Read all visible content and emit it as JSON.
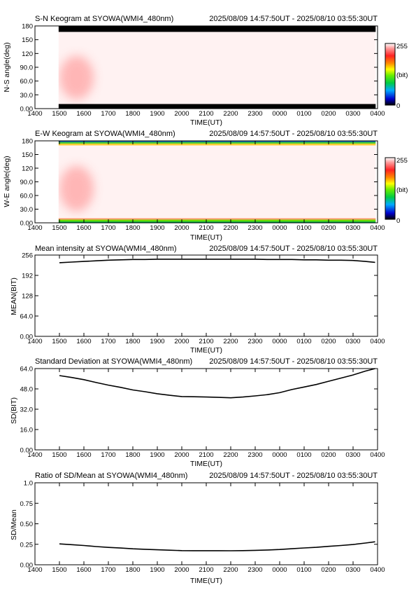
{
  "station": "SYOWA",
  "time_range": "2025/08/09 14:57:50UT - 2025/08/10 03:55:30UT",
  "colors": {
    "background": "#ffffff",
    "plot_fill": "#fff2f2",
    "line": "#000000",
    "colorscale": [
      "#000000",
      "#0000cc",
      "#00aaff",
      "#00cc44",
      "#66ee00",
      "#ffff00",
      "#ff8800",
      "#ff2222",
      "#ff9999",
      "#ffffff"
    ]
  },
  "chart_data": [
    {
      "id": "sn",
      "type": "heatmap",
      "title": "S-N Keogram at SYOWA(WMI4_480nm)",
      "subtitle": "2025/08/09 14:57:50UT - 2025/08/10 03:55:30UT",
      "xlabel": "TIME(UT)",
      "ylabel": "N-S angle(deg)",
      "xlim": [
        14,
        28
      ],
      "ylim": [
        0,
        180
      ],
      "xticks": [
        "1400",
        "1500",
        "1600",
        "1700",
        "1800",
        "1900",
        "2000",
        "2100",
        "2200",
        "2300",
        "0000",
        "0100",
        "0200",
        "0300",
        "0400"
      ],
      "yticks": [
        {
          "v": 0,
          "t": "0.00"
        },
        {
          "v": 30,
          "t": "30.0"
        },
        {
          "v": 60,
          "t": "60.0"
        },
        {
          "v": 90,
          "t": "90.0"
        },
        {
          "v": 120,
          "t": "120"
        },
        {
          "v": 150,
          "t": "150"
        },
        {
          "v": 180,
          "t": "180"
        }
      ],
      "data_start": 14.964,
      "data_end": 27.925,
      "colorbar": {
        "min": "0",
        "max": "255",
        "unit": "(bit)"
      },
      "bands": [
        {
          "from": 0,
          "to": 10,
          "color": "#000000"
        },
        {
          "from": 167,
          "to": 180,
          "color": "#000000"
        }
      ],
      "blobs": [
        {
          "t0": 15.0,
          "t1": 16.4,
          "a0": 20,
          "a1": 115,
          "color": "#ffb0b0"
        }
      ]
    },
    {
      "id": "ew",
      "type": "heatmap",
      "title": "E-W Keogram at SYOWA(WMI4_480nm)",
      "subtitle": "2025/08/09 14:57:50UT - 2025/08/10 03:55:30UT",
      "xlabel": "TIME(UT)",
      "ylabel": "W-E angle(deg)",
      "xlim": [
        14,
        28
      ],
      "ylim": [
        0,
        180
      ],
      "xticks": [
        "1400",
        "1500",
        "1600",
        "1700",
        "1800",
        "1900",
        "2000",
        "2100",
        "2200",
        "2300",
        "0000",
        "0100",
        "0200",
        "0300",
        "0400"
      ],
      "yticks": [
        {
          "v": 0,
          "t": "0.00"
        },
        {
          "v": 30,
          "t": "30.0"
        },
        {
          "v": 60,
          "t": "60.0"
        },
        {
          "v": 90,
          "t": "90.0"
        },
        {
          "v": 120,
          "t": "120"
        },
        {
          "v": 150,
          "t": "150"
        },
        {
          "v": 180,
          "t": "180"
        }
      ],
      "data_start": 14.964,
      "data_end": 27.925,
      "colorbar": {
        "min": "0",
        "max": "255",
        "unit": "(bit)"
      },
      "bands": [
        {
          "from": 0,
          "to": 3,
          "color": "#00aa44"
        },
        {
          "from": 3,
          "to": 7,
          "color": "#66dd00"
        },
        {
          "from": 7,
          "to": 10,
          "color": "#ff9966"
        },
        {
          "from": 170,
          "to": 174,
          "color": "#ffcc33"
        },
        {
          "from": 174,
          "to": 177,
          "color": "#44cc22"
        },
        {
          "from": 177,
          "to": 180,
          "color": "#1177aa"
        }
      ],
      "blobs": [
        {
          "t0": 15.0,
          "t1": 16.4,
          "a0": 25,
          "a1": 125,
          "color": "#ffb0b0"
        }
      ]
    },
    {
      "id": "mean",
      "type": "line",
      "title": "Mean intensity at SYOWA(WMI4_480nm)",
      "subtitle": "2025/08/09 14:57:50UT - 2025/08/10 03:55:30UT",
      "xlabel": "TIME(UT)",
      "ylabel": "MEAN(BIT)",
      "xlim": [
        14,
        28
      ],
      "ylim": [
        0,
        256
      ],
      "xticks": [
        "1400",
        "1500",
        "1600",
        "1700",
        "1800",
        "1900",
        "2000",
        "2100",
        "2200",
        "2300",
        "0000",
        "0100",
        "0200",
        "0300",
        "0400"
      ],
      "yticks": [
        {
          "v": 0,
          "t": "0.00"
        },
        {
          "v": 64,
          "t": "64.0"
        },
        {
          "v": 128,
          "t": "128"
        },
        {
          "v": 192,
          "t": "192"
        },
        {
          "v": 256,
          "t": "256"
        }
      ],
      "x": [
        15.0,
        15.5,
        16.0,
        16.5,
        17.0,
        17.5,
        18.0,
        18.5,
        19.0,
        19.5,
        20.0,
        20.5,
        21.0,
        21.5,
        22.0,
        22.5,
        23.0,
        23.5,
        24.0,
        24.5,
        25.0,
        25.5,
        26.0,
        26.5,
        27.0,
        27.5,
        27.9
      ],
      "y": [
        232,
        234,
        236,
        238,
        240,
        241,
        242,
        242,
        243,
        243,
        243,
        243,
        243,
        243,
        243,
        243,
        243,
        242,
        242,
        242,
        241,
        241,
        240,
        240,
        239,
        236,
        233
      ]
    },
    {
      "id": "sd",
      "type": "line",
      "title": "Standard Deviation at SYOWA(WMI4_480nm)",
      "subtitle": "2025/08/09 14:57:50UT - 2025/08/10 03:55:30UT",
      "xlabel": "TIME(UT)",
      "ylabel": "SD(BIT)",
      "xlim": [
        14,
        28
      ],
      "ylim": [
        0,
        64
      ],
      "xticks": [
        "1400",
        "1500",
        "1600",
        "1700",
        "1800",
        "1900",
        "2000",
        "2100",
        "2200",
        "2300",
        "0000",
        "0100",
        "0200",
        "0300",
        "0400"
      ],
      "yticks": [
        {
          "v": 0,
          "t": "0.00"
        },
        {
          "v": 16,
          "t": "16.0"
        },
        {
          "v": 32,
          "t": "32.0"
        },
        {
          "v": 48,
          "t": "48.0"
        },
        {
          "v": 64,
          "t": "64.0"
        }
      ],
      "x": [
        15.0,
        15.5,
        16.0,
        16.5,
        17.0,
        17.5,
        18.0,
        18.5,
        19.0,
        19.5,
        20.0,
        20.5,
        21.0,
        21.5,
        22.0,
        22.5,
        23.0,
        23.5,
        24.0,
        24.5,
        25.0,
        25.5,
        26.0,
        26.5,
        27.0,
        27.5,
        27.9
      ],
      "y": [
        58.5,
        57.0,
        55.3,
        53.0,
        51.0,
        49.2,
        47.2,
        45.8,
        44.2,
        43.0,
        42.0,
        41.8,
        41.6,
        41.3,
        41.0,
        41.6,
        42.5,
        43.5,
        45.0,
        47.5,
        49.5,
        51.5,
        54.0,
        56.5,
        59.0,
        62.0,
        64.0
      ]
    },
    {
      "id": "ratio",
      "type": "line",
      "title": "Ratio of SD/Mean at SYOWA(WMI4_480nm)",
      "subtitle": "2025/08/09 14:57:50UT - 2025/08/10 03:55:30UT",
      "xlabel": "TIME(UT)",
      "ylabel": "SD/Mean",
      "xlim": [
        14,
        28
      ],
      "ylim": [
        0,
        1
      ],
      "xticks": [
        "1400",
        "1500",
        "1600",
        "1700",
        "1800",
        "1900",
        "2000",
        "2100",
        "2200",
        "2300",
        "0000",
        "0100",
        "0200",
        "0300",
        "0400"
      ],
      "yticks": [
        {
          "v": 0,
          "t": "0.00"
        },
        {
          "v": 0.25,
          "t": "0.25"
        },
        {
          "v": 0.5,
          "t": "0.50"
        },
        {
          "v": 0.75,
          "t": "0.75"
        },
        {
          "v": 1,
          "t": "1.0"
        }
      ],
      "x": [
        15.0,
        15.5,
        16.0,
        16.5,
        17.0,
        17.5,
        18.0,
        18.5,
        19.0,
        19.5,
        20.0,
        20.5,
        21.0,
        21.5,
        22.0,
        22.5,
        23.0,
        23.5,
        24.0,
        24.5,
        25.0,
        25.5,
        26.0,
        26.5,
        27.0,
        27.5,
        27.9
      ],
      "y": [
        0.255,
        0.245,
        0.235,
        0.222,
        0.212,
        0.204,
        0.195,
        0.189,
        0.183,
        0.178,
        0.173,
        0.172,
        0.172,
        0.172,
        0.171,
        0.173,
        0.176,
        0.18,
        0.186,
        0.196,
        0.205,
        0.213,
        0.225,
        0.235,
        0.247,
        0.265,
        0.28
      ]
    }
  ]
}
